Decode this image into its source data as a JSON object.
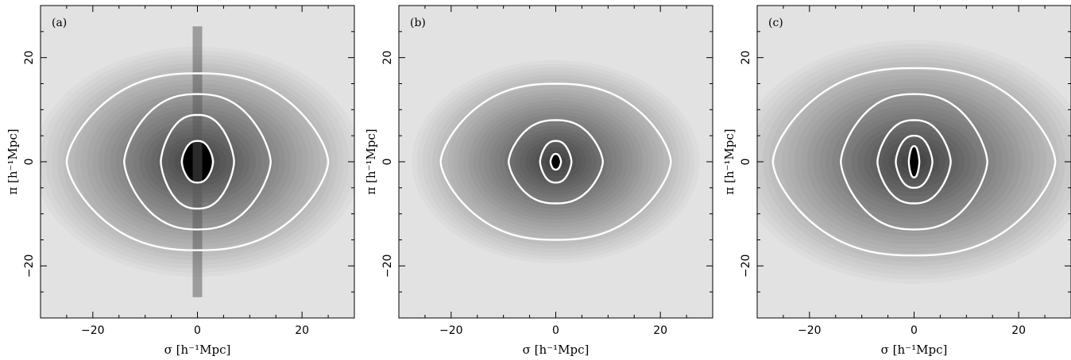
{
  "chart_data": [
    {
      "type": "heatmap",
      "panel_label": "(a)",
      "xlabel": "σ  [h⁻¹Mpc]",
      "ylabel": "π  [h⁻¹Mpc]",
      "xlim": [
        -30,
        30
      ],
      "ylim": [
        -30,
        30
      ],
      "xticks": [
        -20,
        0,
        20
      ],
      "yticks": [
        -20,
        0,
        20
      ],
      "colormap": "grayscale (black = high, light gray = low)",
      "contour_color": "#ffffff",
      "contours": [
        {
          "sigma_extent": 3,
          "pi_extent": 4
        },
        {
          "sigma_extent": 7,
          "pi_extent": 9
        },
        {
          "sigma_extent": 14,
          "pi_extent": 13
        },
        {
          "sigma_extent": 25,
          "pi_extent": 17
        }
      ],
      "features": "strong finger-of-god elongation along π near σ=0"
    },
    {
      "type": "heatmap",
      "panel_label": "(b)",
      "xlabel": "σ  [h⁻¹Mpc]",
      "ylabel": "π  [h⁻¹Mpc]",
      "xlim": [
        -30,
        30
      ],
      "ylim": [
        -30,
        30
      ],
      "xticks": [
        -20,
        0,
        20
      ],
      "yticks": [
        -20,
        0,
        20
      ],
      "colormap": "grayscale (black = high, light gray = low)",
      "contour_color": "#ffffff",
      "contours": [
        {
          "sigma_extent": 1,
          "pi_extent": 1.5
        },
        {
          "sigma_extent": 3,
          "pi_extent": 4
        },
        {
          "sigma_extent": 9,
          "pi_extent": 8
        },
        {
          "sigma_extent": 22,
          "pi_extent": 15
        }
      ]
    },
    {
      "type": "heatmap",
      "panel_label": "(c)",
      "xlabel": "σ  [h⁻¹Mpc]",
      "ylabel": "π  [h⁻¹Mpc]",
      "xlim": [
        -30,
        30
      ],
      "ylim": [
        -30,
        30
      ],
      "xticks": [
        -20,
        0,
        20
      ],
      "yticks": [
        -20,
        0,
        20
      ],
      "colormap": "grayscale (black = high, light gray = low)",
      "contour_color": "#ffffff",
      "contours": [
        {
          "sigma_extent": 1,
          "pi_extent": 3
        },
        {
          "sigma_extent": 3.5,
          "pi_extent": 5
        },
        {
          "sigma_extent": 7,
          "pi_extent": 8
        },
        {
          "sigma_extent": 14,
          "pi_extent": 13
        },
        {
          "sigma_extent": 27,
          "pi_extent": 18
        }
      ]
    }
  ]
}
